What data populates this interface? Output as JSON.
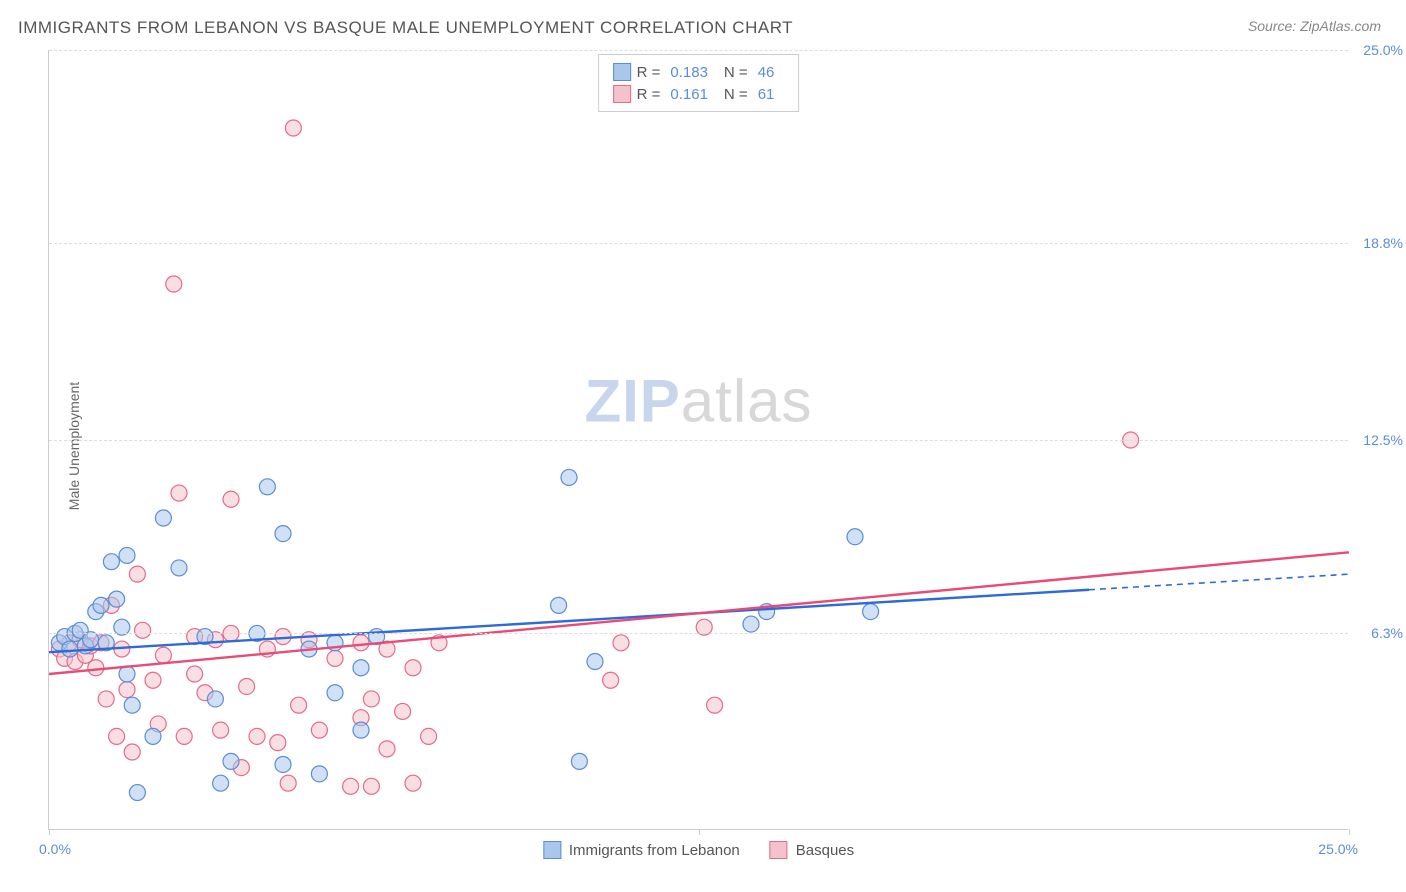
{
  "title": "IMMIGRANTS FROM LEBANON VS BASQUE MALE UNEMPLOYMENT CORRELATION CHART",
  "source": "Source: ZipAtlas.com",
  "y_axis_label": "Male Unemployment",
  "watermark_zip": "ZIP",
  "watermark_atlas": "atlas",
  "chart": {
    "type": "scatter-with-regression",
    "background_color": "#ffffff",
    "grid_color": "#dddddd",
    "axis_color": "#cccccc",
    "tick_label_color": "#5b8dd6",
    "title_color": "#555555",
    "title_fontsize": 17,
    "label_fontsize": 14,
    "xlim": [
      0,
      25
    ],
    "ylim": [
      0,
      25
    ],
    "x_ticks": [
      0,
      25
    ],
    "x_tick_labels": [
      "0.0%",
      "25.0%"
    ],
    "y_ticks": [
      6.3,
      12.5,
      18.8,
      25.0
    ],
    "y_tick_labels": [
      "6.3%",
      "12.5%",
      "18.8%",
      "25.0%"
    ],
    "x_tick_marks": [
      0,
      12.5,
      25
    ],
    "marker_radius": 8,
    "marker_stroke_width": 1.2,
    "regression_line_width": 2.4,
    "series": [
      {
        "name": "Immigrants from Lebanon",
        "fill_color": "#a9c7ec",
        "stroke_color": "#5b8dd6",
        "line_color": "#2e6bd6",
        "R": "0.183",
        "N": "46",
        "regression": {
          "x1": 0,
          "y1": 5.7,
          "x2": 20.0,
          "y2": 7.7,
          "dash_after_x": 20.0,
          "x_end": 25.0,
          "y_end": 8.2
        },
        "points": [
          [
            0.2,
            6.0
          ],
          [
            0.3,
            6.2
          ],
          [
            0.4,
            5.8
          ],
          [
            0.5,
            6.3
          ],
          [
            0.6,
            6.4
          ],
          [
            0.7,
            5.9
          ],
          [
            0.8,
            6.1
          ],
          [
            0.9,
            7.0
          ],
          [
            1.0,
            7.2
          ],
          [
            1.1,
            6.0
          ],
          [
            1.2,
            8.6
          ],
          [
            1.3,
            7.4
          ],
          [
            1.4,
            6.5
          ],
          [
            1.5,
            8.8
          ],
          [
            1.6,
            4.0
          ],
          [
            1.7,
            1.2
          ],
          [
            1.5,
            5.0
          ],
          [
            2.0,
            3.0
          ],
          [
            2.2,
            10.0
          ],
          [
            2.5,
            8.4
          ],
          [
            3.0,
            6.2
          ],
          [
            3.2,
            4.2
          ],
          [
            3.5,
            2.2
          ],
          [
            3.3,
            1.5
          ],
          [
            4.0,
            6.3
          ],
          [
            4.2,
            11.0
          ],
          [
            4.5,
            2.1
          ],
          [
            4.5,
            9.5
          ],
          [
            5.0,
            5.8
          ],
          [
            5.2,
            1.8
          ],
          [
            5.5,
            6.0
          ],
          [
            5.5,
            4.4
          ],
          [
            6.0,
            3.2
          ],
          [
            6.0,
            5.2
          ],
          [
            6.3,
            6.2
          ],
          [
            9.8,
            7.2
          ],
          [
            10.0,
            11.3
          ],
          [
            10.2,
            2.2
          ],
          [
            10.5,
            5.4
          ],
          [
            13.5,
            6.6
          ],
          [
            13.8,
            7.0
          ],
          [
            15.5,
            9.4
          ],
          [
            15.8,
            7.0
          ]
        ]
      },
      {
        "name": "Basques",
        "fill_color": "#f4c2cc",
        "stroke_color": "#e66a8a",
        "line_color": "#e84b78",
        "R": "0.161",
        "N": "61",
        "regression": {
          "x1": 0,
          "y1": 5.0,
          "x2": 25.0,
          "y2": 8.9
        },
        "points": [
          [
            0.2,
            5.8
          ],
          [
            0.3,
            5.5
          ],
          [
            0.4,
            6.0
          ],
          [
            0.5,
            5.4
          ],
          [
            0.6,
            6.1
          ],
          [
            0.7,
            5.6
          ],
          [
            0.8,
            5.9
          ],
          [
            0.9,
            5.2
          ],
          [
            1.0,
            6.0
          ],
          [
            1.1,
            4.2
          ],
          [
            1.2,
            7.2
          ],
          [
            1.3,
            3.0
          ],
          [
            1.4,
            5.8
          ],
          [
            1.5,
            4.5
          ],
          [
            1.6,
            2.5
          ],
          [
            1.7,
            8.2
          ],
          [
            1.8,
            6.4
          ],
          [
            2.0,
            4.8
          ],
          [
            2.1,
            3.4
          ],
          [
            2.2,
            5.6
          ],
          [
            2.4,
            17.5
          ],
          [
            2.5,
            10.8
          ],
          [
            2.6,
            3.0
          ],
          [
            2.8,
            6.2
          ],
          [
            2.8,
            5.0
          ],
          [
            3.0,
            4.4
          ],
          [
            3.2,
            6.1
          ],
          [
            3.3,
            3.2
          ],
          [
            3.5,
            6.3
          ],
          [
            3.7,
            2.0
          ],
          [
            3.5,
            10.6
          ],
          [
            3.8,
            4.6
          ],
          [
            4.0,
            3.0
          ],
          [
            4.2,
            5.8
          ],
          [
            4.4,
            2.8
          ],
          [
            4.5,
            6.2
          ],
          [
            4.7,
            22.5
          ],
          [
            4.6,
            1.5
          ],
          [
            4.8,
            4.0
          ],
          [
            5.0,
            6.1
          ],
          [
            5.2,
            3.2
          ],
          [
            5.5,
            5.5
          ],
          [
            5.8,
            1.4
          ],
          [
            6.0,
            3.6
          ],
          [
            6.0,
            6.0
          ],
          [
            6.2,
            4.2
          ],
          [
            6.2,
            1.4
          ],
          [
            6.5,
            5.8
          ],
          [
            6.5,
            2.6
          ],
          [
            6.8,
            3.8
          ],
          [
            7.0,
            5.2
          ],
          [
            7.0,
            1.5
          ],
          [
            7.3,
            3.0
          ],
          [
            7.5,
            6.0
          ],
          [
            10.8,
            4.8
          ],
          [
            11.0,
            6.0
          ],
          [
            12.6,
            6.5
          ],
          [
            12.8,
            4.0
          ],
          [
            20.8,
            12.5
          ]
        ]
      }
    ]
  },
  "legend_top": {
    "r_label": "R =",
    "n_label": "N ="
  },
  "legend_bottom": [
    {
      "label": "Immigrants from Lebanon",
      "fill": "#a9c7ec",
      "stroke": "#5b8dd6"
    },
    {
      "label": "Basques",
      "fill": "#f4c2cc",
      "stroke": "#e66a8a"
    }
  ]
}
